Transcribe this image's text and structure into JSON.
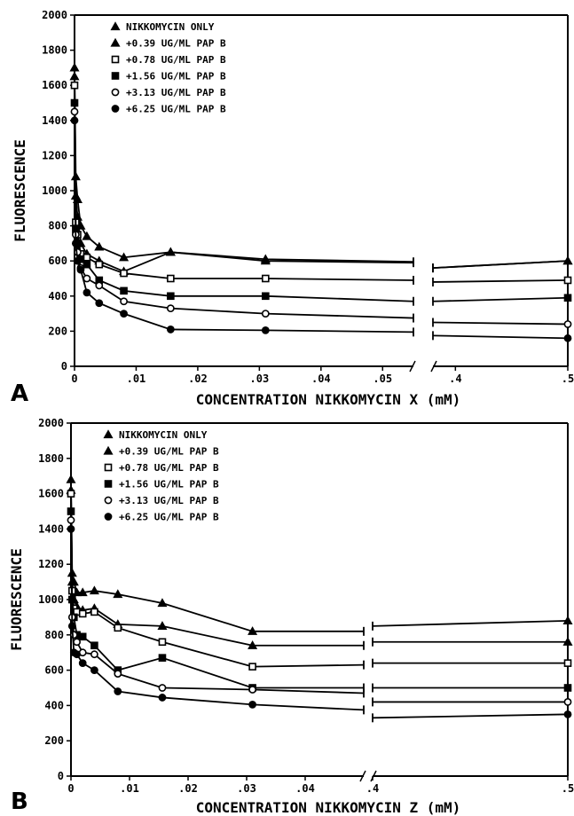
{
  "chart_data": [
    {
      "type": "line",
      "panel_label": "A",
      "ylabel": "FLUORESCENCE",
      "xlabel": "CONCENTRATION NIKKOMYCIN X (mM)",
      "ylim": [
        0,
        2000
      ],
      "y_ticks": [
        0,
        200,
        400,
        600,
        800,
        1000,
        1200,
        1400,
        1600,
        1800,
        2000
      ],
      "x_ticks": [
        {
          "value": 0,
          "label": "0"
        },
        {
          "value": 0.01,
          "label": ".01"
        },
        {
          "value": 0.02,
          "label": ".02"
        },
        {
          "value": 0.03,
          "label": ".03"
        },
        {
          "value": 0.04,
          "label": ".04"
        },
        {
          "value": 0.05,
          "label": ".05"
        },
        {
          "value": 0.4,
          "label": ".4"
        },
        {
          "value": 0.5,
          "label": ".5"
        }
      ],
      "x_break": [
        0.055,
        0.38
      ],
      "legend_position": "top-left",
      "series": [
        {
          "name": "NIKKOMYCIN ONLY",
          "marker": "triangle-up",
          "filled": true,
          "x": [
            0,
            0.0002,
            0.0005,
            0.001,
            0.002,
            0.004,
            0.008,
            0.0156,
            0.031,
            0.055,
            0.38,
            0.5
          ],
          "y": [
            1700,
            1080,
            950,
            800,
            740,
            680,
            620,
            650,
            610,
            595,
            560,
            600
          ]
        },
        {
          "name": "+0.39 UG/ML PAP B",
          "marker": "triangle-up",
          "filled": true,
          "x": [
            0,
            0.0002,
            0.0005,
            0.001,
            0.002,
            0.004,
            0.008,
            0.0156,
            0.031,
            0.055,
            0.38,
            0.5
          ],
          "y": [
            1650,
            970,
            850,
            700,
            640,
            600,
            540,
            650,
            600,
            590,
            560,
            600
          ]
        },
        {
          "name": "+0.78 UG/ML PAP B",
          "marker": "square",
          "filled": false,
          "x": [
            0,
            0.0002,
            0.0005,
            0.001,
            0.002,
            0.004,
            0.008,
            0.0156,
            0.031,
            0.055,
            0.38,
            0.5
          ],
          "y": [
            1600,
            820,
            750,
            640,
            620,
            580,
            530,
            500,
            500,
            490,
            480,
            490
          ]
        },
        {
          "name": "+1.56 UG/ML PAP B",
          "marker": "square",
          "filled": true,
          "x": [
            0,
            0.0002,
            0.0005,
            0.001,
            0.002,
            0.004,
            0.008,
            0.0156,
            0.031,
            0.055,
            0.38,
            0.5
          ],
          "y": [
            1500,
            780,
            700,
            610,
            580,
            490,
            430,
            400,
            400,
            370,
            370,
            390
          ]
        },
        {
          "name": "+3.13 UG/ML PAP B",
          "marker": "circle",
          "filled": false,
          "x": [
            0,
            0.0002,
            0.0005,
            0.001,
            0.002,
            0.004,
            0.008,
            0.0156,
            0.031,
            0.055,
            0.38,
            0.5
          ],
          "y": [
            1450,
            750,
            650,
            560,
            500,
            460,
            370,
            330,
            300,
            275,
            250,
            240
          ]
        },
        {
          "name": "+6.25 UG/ML PAP B",
          "marker": "circle",
          "filled": true,
          "x": [
            0,
            0.0002,
            0.0005,
            0.001,
            0.002,
            0.004,
            0.008,
            0.0156,
            0.031,
            0.055,
            0.38,
            0.5
          ],
          "y": [
            1400,
            700,
            600,
            550,
            420,
            360,
            300,
            210,
            205,
            195,
            175,
            160
          ]
        }
      ]
    },
    {
      "type": "line",
      "panel_label": "B",
      "ylabel": "FLUORESCENCE",
      "xlabel": "CONCENTRATION NIKKOMYCIN Z (mM)",
      "ylim": [
        0,
        2000
      ],
      "y_ticks": [
        0,
        200,
        400,
        600,
        800,
        1000,
        1200,
        1400,
        1600,
        1800,
        2000
      ],
      "x_ticks": [
        {
          "value": 0,
          "label": "0"
        },
        {
          "value": 0.01,
          "label": ".01"
        },
        {
          "value": 0.02,
          "label": ".02"
        },
        {
          "value": 0.03,
          "label": ".03"
        },
        {
          "value": 0.04,
          "label": ".04"
        },
        {
          "value": 0.4,
          "label": ".4"
        },
        {
          "value": 0.5,
          "label": ".5"
        }
      ],
      "x_break": [
        0.05,
        0.4
      ],
      "legend_position": "top-left",
      "series": [
        {
          "name": "NIKKOMYCIN ONLY",
          "marker": "triangle-up",
          "filled": true,
          "x": [
            0,
            0.0002,
            0.0005,
            0.001,
            0.002,
            0.004,
            0.008,
            0.0156,
            0.031,
            0.05,
            0.4,
            0.5
          ],
          "y": [
            1680,
            1150,
            1100,
            1040,
            1040,
            1050,
            1030,
            980,
            820,
            820,
            850,
            880
          ]
        },
        {
          "name": "+0.39 UG/ML PAP B",
          "marker": "triangle-up",
          "filled": true,
          "x": [
            0,
            0.0002,
            0.0005,
            0.001,
            0.002,
            0.004,
            0.008,
            0.0156,
            0.031,
            0.05,
            0.4,
            0.5
          ],
          "y": [
            1620,
            1100,
            1000,
            960,
            940,
            950,
            860,
            850,
            740,
            740,
            760,
            760
          ]
        },
        {
          "name": "+0.78 UG/ML PAP B",
          "marker": "square",
          "filled": false,
          "x": [
            0,
            0.0002,
            0.0005,
            0.001,
            0.002,
            0.004,
            0.008,
            0.0156,
            0.031,
            0.05,
            0.4,
            0.5
          ],
          "y": [
            1600,
            1050,
            950,
            930,
            920,
            930,
            840,
            760,
            620,
            630,
            640,
            640
          ]
        },
        {
          "name": "+1.56 UG/ML PAP B",
          "marker": "square",
          "filled": true,
          "x": [
            0,
            0.0002,
            0.0005,
            0.001,
            0.002,
            0.004,
            0.008,
            0.0156,
            0.031,
            0.05,
            0.4,
            0.5
          ],
          "y": [
            1500,
            1000,
            900,
            800,
            790,
            740,
            600,
            670,
            500,
            500,
            500,
            500
          ]
        },
        {
          "name": "+3.13 UG/ML PAP B",
          "marker": "circle",
          "filled": false,
          "x": [
            0,
            0.0002,
            0.0005,
            0.001,
            0.002,
            0.004,
            0.008,
            0.0156,
            0.031,
            0.05,
            0.4,
            0.5
          ],
          "y": [
            1450,
            900,
            800,
            760,
            700,
            690,
            580,
            500,
            490,
            470,
            420,
            420
          ]
        },
        {
          "name": "+6.25 UG/ML PAP B",
          "marker": "circle",
          "filled": true,
          "x": [
            0,
            0.0002,
            0.0005,
            0.001,
            0.002,
            0.004,
            0.008,
            0.0156,
            0.031,
            0.05,
            0.4,
            0.5
          ],
          "y": [
            1400,
            850,
            700,
            690,
            640,
            600,
            480,
            445,
            405,
            375,
            330,
            350
          ]
        }
      ]
    }
  ]
}
